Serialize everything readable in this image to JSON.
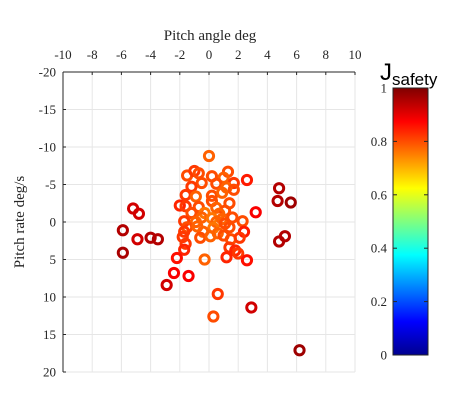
{
  "chart_data": {
    "type": "scatter",
    "title": "",
    "xlabel": "Pitch angle deg",
    "ylabel": "Pitch rate deg/s",
    "xlim": [
      -10,
      10
    ],
    "ylim": [
      -20,
      20
    ],
    "y_reversed": true,
    "x_axis_position": "top",
    "x_ticks": [
      -10,
      -8,
      -6,
      -4,
      -2,
      0,
      2,
      4,
      6,
      8,
      10
    ],
    "y_ticks": [
      -20,
      -15,
      -10,
      -5,
      0,
      5,
      10,
      15,
      20
    ],
    "grid": true,
    "marker": "hollow circle",
    "colorbar": {
      "title_main": "J",
      "title_sub": "safety",
      "range": [
        0,
        1
      ],
      "ticks": [
        0,
        0.2,
        0.4,
        0.6,
        0.8,
        1
      ],
      "colormap": "jet"
    },
    "points": [
      {
        "x": 0.0,
        "y": -8.8,
        "c": 0.78
      },
      {
        "x": -1.5,
        "y": -6.2,
        "c": 0.8
      },
      {
        "x": -1.0,
        "y": -6.8,
        "c": 0.82
      },
      {
        "x": -0.7,
        "y": -6.5,
        "c": 0.8
      },
      {
        "x": 1.3,
        "y": -6.7,
        "c": 0.8
      },
      {
        "x": 0.2,
        "y": -6.1,
        "c": 0.8
      },
      {
        "x": 1.0,
        "y": -5.9,
        "c": 0.78
      },
      {
        "x": -0.5,
        "y": -5.2,
        "c": 0.8
      },
      {
        "x": 0.5,
        "y": -5.1,
        "c": 0.8
      },
      {
        "x": 1.7,
        "y": -5.2,
        "c": 0.82
      },
      {
        "x": 2.6,
        "y": -5.6,
        "c": 0.85
      },
      {
        "x": -1.2,
        "y": -4.7,
        "c": 0.82
      },
      {
        "x": 1.2,
        "y": -4.6,
        "c": 0.78
      },
      {
        "x": 1.7,
        "y": -4.3,
        "c": 0.8
      },
      {
        "x": -1.6,
        "y": -3.6,
        "c": 0.82
      },
      {
        "x": -0.9,
        "y": -3.4,
        "c": 0.78
      },
      {
        "x": 0.2,
        "y": -3.5,
        "c": 0.8
      },
      {
        "x": 0.9,
        "y": -3.9,
        "c": 0.78
      },
      {
        "x": 0.2,
        "y": -2.8,
        "c": 0.8
      },
      {
        "x": 1.4,
        "y": -2.5,
        "c": 0.8
      },
      {
        "x": -2.0,
        "y": -2.2,
        "c": 0.84
      },
      {
        "x": -1.6,
        "y": -2.1,
        "c": 0.82
      },
      {
        "x": -0.7,
        "y": -2.0,
        "c": 0.8
      },
      {
        "x": 0.5,
        "y": -1.9,
        "c": 0.78
      },
      {
        "x": 1.1,
        "y": -1.5,
        "c": 0.8
      },
      {
        "x": -1.2,
        "y": -1.2,
        "c": 0.8
      },
      {
        "x": -0.3,
        "y": -1.2,
        "c": 0.76
      },
      {
        "x": 0.7,
        "y": -1.1,
        "c": 0.78
      },
      {
        "x": -0.5,
        "y": -0.6,
        "c": 0.78
      },
      {
        "x": 0.2,
        "y": -0.5,
        "c": 0.76
      },
      {
        "x": 0.9,
        "y": -0.4,
        "c": 0.78
      },
      {
        "x": 1.6,
        "y": -0.6,
        "c": 0.8
      },
      {
        "x": -1.7,
        "y": -0.1,
        "c": 0.82
      },
      {
        "x": -0.9,
        "y": 0.0,
        "c": 0.78
      },
      {
        "x": 0.5,
        "y": 0.0,
        "c": 0.78
      },
      {
        "x": 1.1,
        "y": 0.2,
        "c": 0.8
      },
      {
        "x": 2.3,
        "y": -0.1,
        "c": 0.8
      },
      {
        "x": -1.5,
        "y": 0.7,
        "c": 0.8
      },
      {
        "x": -0.8,
        "y": 0.6,
        "c": 0.78
      },
      {
        "x": 0.3,
        "y": 0.8,
        "c": 0.76
      },
      {
        "x": 1.4,
        "y": 0.7,
        "c": 0.8
      },
      {
        "x": -1.7,
        "y": 1.3,
        "c": 0.82
      },
      {
        "x": -0.4,
        "y": 1.3,
        "c": 0.78
      },
      {
        "x": 0.6,
        "y": 1.5,
        "c": 0.78
      },
      {
        "x": 1.0,
        "y": 1.8,
        "c": 0.8
      },
      {
        "x": 2.4,
        "y": 1.3,
        "c": 0.85
      },
      {
        "x": -1.8,
        "y": 2.0,
        "c": 0.82
      },
      {
        "x": -0.6,
        "y": 2.1,
        "c": 0.8
      },
      {
        "x": 0.1,
        "y": 1.9,
        "c": 0.78
      },
      {
        "x": 1.5,
        "y": 2.3,
        "c": 0.8
      },
      {
        "x": 2.1,
        "y": 2.1,
        "c": 0.82
      },
      {
        "x": -1.6,
        "y": 2.9,
        "c": 0.82
      },
      {
        "x": -1.7,
        "y": 3.7,
        "c": 0.84
      },
      {
        "x": 1.4,
        "y": 3.4,
        "c": 0.82
      },
      {
        "x": 1.8,
        "y": 3.8,
        "c": 0.84
      },
      {
        "x": 2.0,
        "y": 4.2,
        "c": 0.82
      },
      {
        "x": 1.2,
        "y": 4.7,
        "c": 0.84
      },
      {
        "x": 2.6,
        "y": 5.1,
        "c": 0.86
      },
      {
        "x": -2.2,
        "y": 4.8,
        "c": 0.86
      },
      {
        "x": -0.3,
        "y": 5.0,
        "c": 0.78
      },
      {
        "x": 3.2,
        "y": -1.3,
        "c": 0.88
      },
      {
        "x": -2.4,
        "y": 6.8,
        "c": 0.88
      },
      {
        "x": -1.4,
        "y": 7.2,
        "c": 0.88
      },
      {
        "x": -2.9,
        "y": 8.4,
        "c": 0.92
      },
      {
        "x": 0.6,
        "y": 9.6,
        "c": 0.82
      },
      {
        "x": 2.9,
        "y": 11.4,
        "c": 0.92
      },
      {
        "x": 0.3,
        "y": 12.6,
        "c": 0.8
      },
      {
        "x": 6.2,
        "y": 17.1,
        "c": 0.97
      },
      {
        "x": -5.2,
        "y": -1.8,
        "c": 0.92
      },
      {
        "x": -4.8,
        "y": -1.1,
        "c": 0.92
      },
      {
        "x": -5.9,
        "y": 1.1,
        "c": 0.95
      },
      {
        "x": -4.9,
        "y": 2.3,
        "c": 0.92
      },
      {
        "x": -4.0,
        "y": 2.1,
        "c": 0.95
      },
      {
        "x": -3.5,
        "y": 2.3,
        "c": 0.95
      },
      {
        "x": -5.9,
        "y": 4.1,
        "c": 0.96
      },
      {
        "x": 4.8,
        "y": -4.5,
        "c": 0.95
      },
      {
        "x": 4.7,
        "y": -2.8,
        "c": 0.95
      },
      {
        "x": 5.6,
        "y": -2.6,
        "c": 0.97
      },
      {
        "x": 5.2,
        "y": 1.9,
        "c": 0.95
      },
      {
        "x": 4.8,
        "y": 2.6,
        "c": 0.95
      }
    ]
  }
}
